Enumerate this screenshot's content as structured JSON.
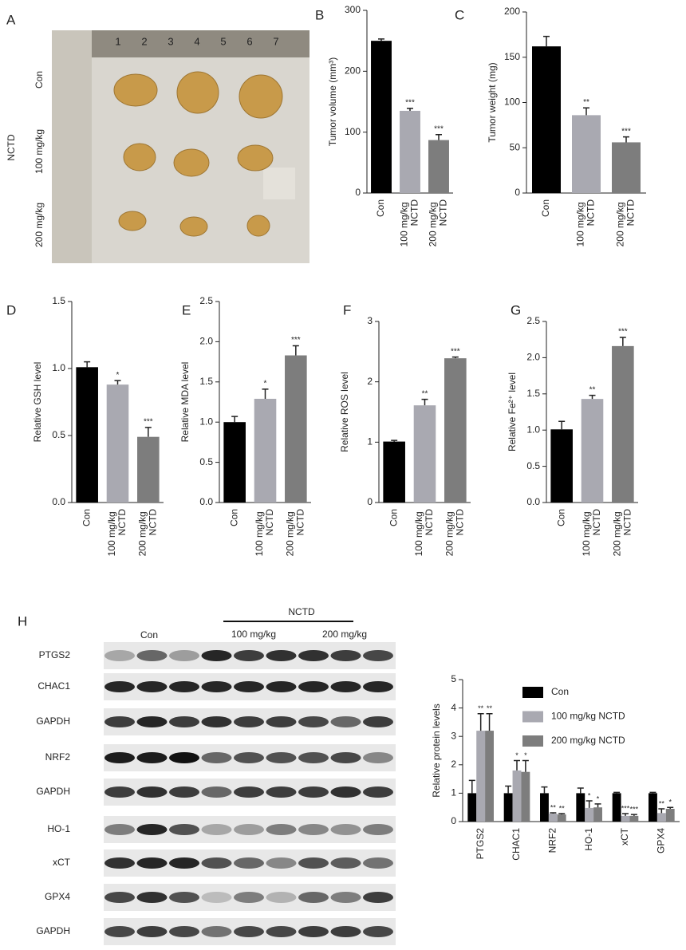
{
  "photo": {
    "panel": "A",
    "group": "NCTD",
    "rows": [
      "Con",
      "100 mg/kg",
      "200 mg/kg"
    ],
    "ruler": [
      "1",
      "2",
      "3",
      "4",
      "5",
      "6",
      "7"
    ]
  },
  "blot": {
    "panel": "H",
    "group": "NCTD",
    "columns": [
      "Con",
      "100 mg/kg",
      "200 mg/kg"
    ],
    "rows": [
      "PTGS2",
      "CHAC1",
      "GAPDH",
      "NRF2",
      "GAPDH",
      "HO-1",
      "xCT",
      "GPX4",
      "GAPDH"
    ]
  },
  "chart_data": [
    {
      "type": "bar",
      "panel": "B",
      "ylabel": "Tumor volume (mm³)",
      "categories": [
        "Con",
        "100 mg/kg\nNCTD",
        "200 mg/kg\nNCTD"
      ],
      "values": [
        250,
        135,
        87
      ],
      "errors": [
        3,
        4,
        9
      ],
      "significance": [
        null,
        "***",
        "***"
      ],
      "colors": [
        "#000000",
        "#a9a9b1",
        "#7d7d7d"
      ],
      "ylim": [
        0,
        300
      ],
      "yticks": [
        0,
        100,
        200,
        300
      ]
    },
    {
      "type": "bar",
      "panel": "C",
      "ylabel": "Tumor weight (mg)",
      "categories": [
        "Con",
        "100 mg/kg\nNCTD",
        "200 mg/kg\nNCTD"
      ],
      "values": [
        162,
        86,
        56
      ],
      "errors": [
        11,
        8,
        6
      ],
      "significance": [
        null,
        "**",
        "***"
      ],
      "colors": [
        "#000000",
        "#a9a9b1",
        "#7d7d7d"
      ],
      "ylim": [
        0,
        200
      ],
      "yticks": [
        0,
        50,
        100,
        150,
        200
      ]
    },
    {
      "type": "bar",
      "panel": "D",
      "ylabel": "Relative GSH level",
      "categories": [
        "Con",
        "100 mg/kg\nNCTD",
        "200 mg/kg\nNCTD"
      ],
      "values": [
        1.01,
        0.88,
        0.49
      ],
      "errors": [
        0.04,
        0.03,
        0.07
      ],
      "significance": [
        null,
        "*",
        "***"
      ],
      "colors": [
        "#000000",
        "#a9a9b1",
        "#7d7d7d"
      ],
      "ylim": [
        0,
        1.5
      ],
      "yticks": [
        {
          "value": 0,
          "label": "0.0"
        },
        0.5,
        {
          "value": 1,
          "label": "1.0"
        },
        1.5
      ]
    },
    {
      "type": "bar",
      "panel": "E",
      "ylabel": "Relative MDA level",
      "categories": [
        "Con",
        "100 mg/kg\nNCTD",
        "200 mg/kg\nNCTD"
      ],
      "values": [
        1.0,
        1.29,
        1.83
      ],
      "errors": [
        0.07,
        0.12,
        0.12
      ],
      "significance": [
        null,
        "*",
        "***"
      ],
      "colors": [
        "#000000",
        "#a9a9b1",
        "#7d7d7d"
      ],
      "ylim": [
        0,
        2.5
      ],
      "yticks": [
        {
          "value": 0,
          "label": "0.0"
        },
        0.5,
        {
          "value": 1,
          "label": "1.0"
        },
        1.5,
        {
          "value": 2,
          "label": "2.0"
        },
        2.5
      ]
    },
    {
      "type": "bar",
      "panel": "F",
      "ylabel": "Relative ROS level",
      "categories": [
        "Con",
        "100 mg/kg\nNCTD",
        "200 mg/kg\nNCTD"
      ],
      "values": [
        1.01,
        1.61,
        2.39
      ],
      "errors": [
        0.02,
        0.1,
        0.02
      ],
      "significance": [
        null,
        "**",
        "***"
      ],
      "colors": [
        "#000000",
        "#a9a9b1",
        "#7d7d7d"
      ],
      "ylim": [
        0,
        3
      ],
      "yticks": [
        0,
        1,
        2,
        3
      ]
    },
    {
      "type": "bar",
      "panel": "G",
      "ylabel": "Relative Fe²⁺ level",
      "categories": [
        "Con",
        "100 mg/kg\nNCTD",
        "200 mg/kg\nNCTD"
      ],
      "values": [
        1.01,
        1.43,
        2.16
      ],
      "errors": [
        0.11,
        0.05,
        0.12
      ],
      "significance": [
        null,
        "**",
        "***"
      ],
      "colors": [
        "#000000",
        "#a9a9b1",
        "#7d7d7d"
      ],
      "ylim": [
        0,
        2.5
      ],
      "yticks": [
        {
          "value": 0,
          "label": "0.0"
        },
        0.5,
        {
          "value": 1,
          "label": "1.0"
        },
        1.5,
        {
          "value": 2,
          "label": "2.0"
        },
        2.5
      ]
    },
    {
      "type": "grouped_bar",
      "ylabel": "Relative protein levels",
      "categories": [
        "PTGS2",
        "CHAC1",
        "NRF2",
        "HO-1",
        "xCT",
        "GPX4"
      ],
      "series": [
        {
          "name": "Con",
          "color": "#000000",
          "values": [
            1,
            1,
            1,
            1,
            1,
            1
          ],
          "errors": [
            0.45,
            0.25,
            0.22,
            0.18,
            0.03,
            0.03
          ],
          "significance": [
            null,
            null,
            null,
            null,
            null,
            null
          ]
        },
        {
          "name": "100 mg/kg NCTD",
          "color": "#a9a9b1",
          "values": [
            3.2,
            1.8,
            0.28,
            0.48,
            0.2,
            0.3
          ],
          "errors": [
            0.6,
            0.35,
            0.03,
            0.25,
            0.08,
            0.15
          ],
          "significance": [
            "**",
            "*",
            "**",
            "*",
            "***",
            "**"
          ]
        },
        {
          "name": "200 mg/kg NCTD",
          "color": "#7d7d7d",
          "values": [
            3.2,
            1.75,
            0.25,
            0.5,
            0.2,
            0.45
          ],
          "errors": [
            0.6,
            0.4,
            0.03,
            0.12,
            0.05,
            0.05
          ],
          "significance": [
            "**",
            "*",
            "**",
            "*",
            "***",
            "*"
          ]
        }
      ],
      "legend": "top-right",
      "ylim": [
        0,
        5
      ],
      "yticks": [
        0,
        1,
        2,
        3,
        4,
        5
      ]
    }
  ]
}
